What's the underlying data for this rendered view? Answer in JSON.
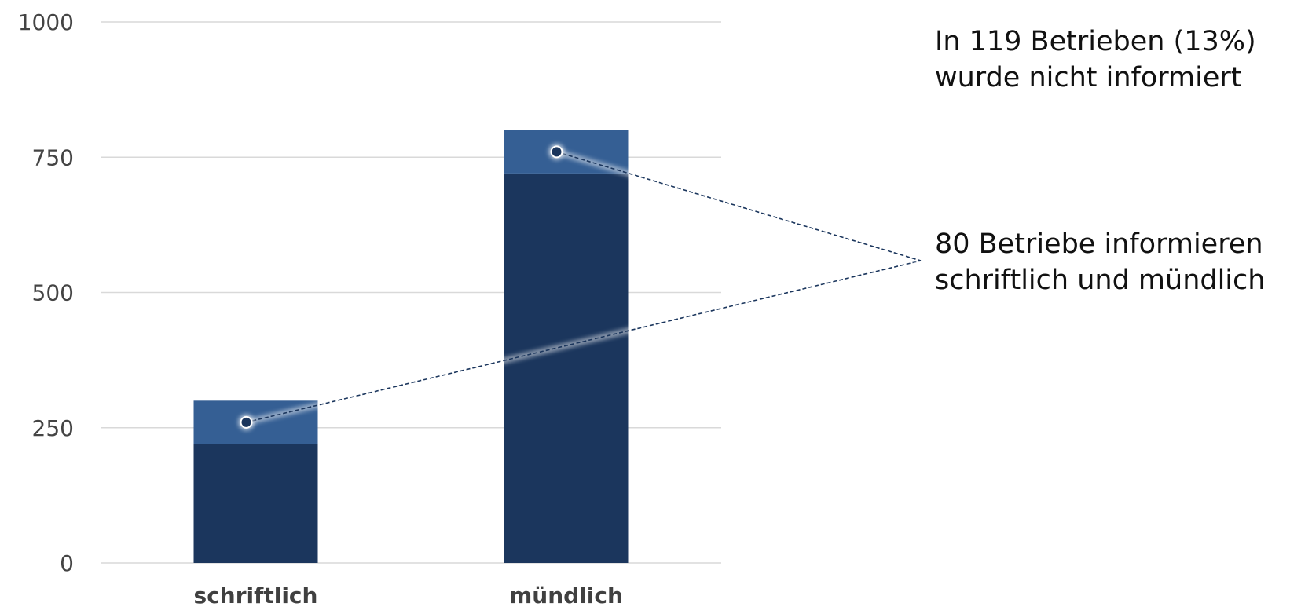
{
  "chart_data": {
    "type": "bar",
    "stacked": true,
    "categories": [
      "schriftlich",
      "mündlich"
    ],
    "series": [
      {
        "values": [
          220,
          720
        ],
        "color": "#1b365d"
      },
      {
        "values": [
          80,
          80
        ],
        "color": "#355f94"
      }
    ],
    "ylim": [
      0,
      1000
    ],
    "yticks": [
      0,
      250,
      500,
      750,
      1000
    ],
    "grid": true,
    "legend": "none",
    "annotations": {
      "not_informed": {
        "lines": [
          "In 119 Betrieben (13%)",
          "wurde nicht informiert"
        ]
      },
      "both": {
        "lines": [
          "80 Betriebe informieren",
          "schriftlich und mündlich"
        ],
        "value": 80
      }
    }
  },
  "colors": {
    "gridline": "#d9d9d9",
    "connector": "#1b365d"
  }
}
